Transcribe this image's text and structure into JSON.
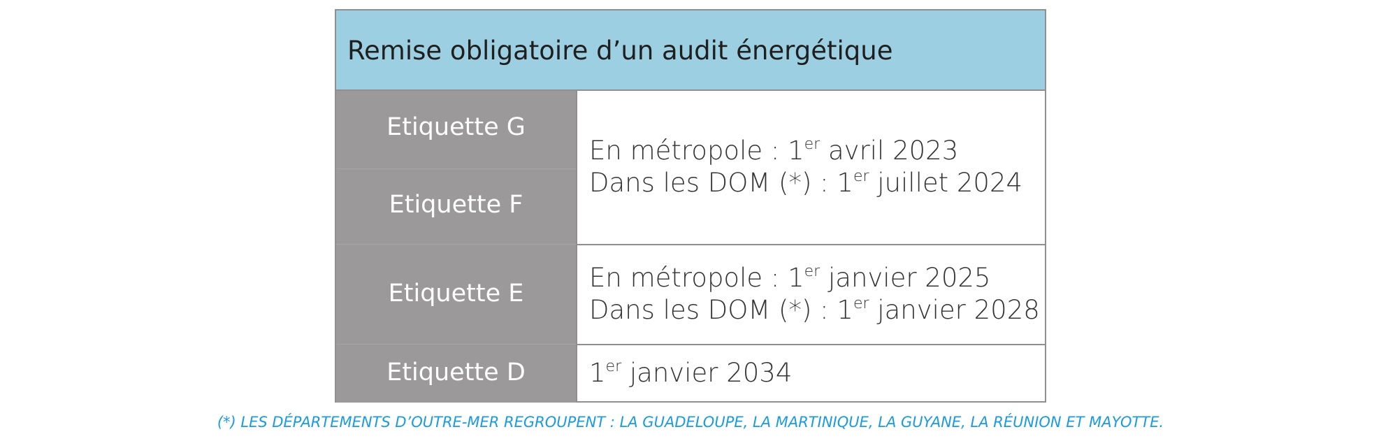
{
  "table": {
    "title": "Remise obligatoire d’un audit énergétique",
    "labels": {
      "g": "Etiquette G",
      "f": "Etiquette F",
      "e": "Etiquette E",
      "d": "Etiquette D"
    },
    "rows": {
      "gf": {
        "line1_prefix": "En métropole : 1",
        "line1_sup": "er",
        "line1_suffix": " avril 2023",
        "line2_prefix": "Dans les DOM (*) : 1",
        "line2_sup": "er",
        "line2_suffix": " juillet 2024"
      },
      "e": {
        "line1_prefix": "En métropole : 1",
        "line1_sup": "er",
        "line1_suffix": " janvier 2025",
        "line2_prefix": "Dans les DOM (*) : 1",
        "line2_sup": "er",
        "line2_suffix": " janvier 2028"
      },
      "d": {
        "line1_prefix": "1",
        "line1_sup": "er",
        "line1_suffix": " janvier 2034"
      }
    }
  },
  "footnote": "(*) LES DÉPARTEMENTS D’OUTRE-MER REGROUPENT : LA GUADELOUPE, LA MARTINIQUE, LA GUYANE, LA RÉUNION ET MAYOTTE.",
  "colors": {
    "header_bg": "#9ccfe1",
    "label_bg": "#9b999a",
    "border": "#8f8f8f",
    "footnote": "#1a9be0"
  }
}
